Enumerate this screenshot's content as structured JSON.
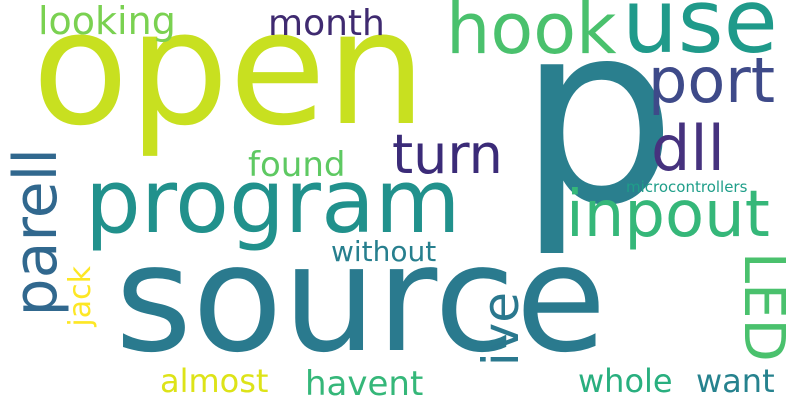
{
  "words": {
    "p": {
      "text": "p",
      "color": "#2a7f8e"
    },
    "source": {
      "text": "source",
      "color": "#2a7a8e"
    },
    "open": {
      "text": "open",
      "color": "#c8e020"
    },
    "program": {
      "text": "program",
      "color": "#21918c"
    },
    "use": {
      "text": "use",
      "color": "#1f9a8a"
    },
    "hook": {
      "text": "hook",
      "color": "#4ac16d"
    },
    "inpout": {
      "text": "inpout",
      "color": "#35b779"
    },
    "turn": {
      "text": "turn",
      "color": "#3b2b78"
    },
    "parell": {
      "text": "parell",
      "color": "#31688e"
    },
    "dll": {
      "text": "dll",
      "color": "#46327e"
    },
    "port": {
      "text": "port",
      "color": "#3e4a89"
    },
    "ive": {
      "text": "ive",
      "color": "#2a788e"
    },
    "led": {
      "text": "LED",
      "color": "#4ac16d"
    },
    "looking": {
      "text": "looking",
      "color": "#7ad151"
    },
    "month": {
      "text": "month",
      "color": "#3f2a70"
    },
    "found": {
      "text": "found",
      "color": "#5ec962"
    },
    "without": {
      "text": "without",
      "color": "#277f8e"
    },
    "jack": {
      "text": "jack",
      "color": "#fde725"
    },
    "almost": {
      "text": "almost",
      "color": "#dde318"
    },
    "havent": {
      "text": "havent",
      "color": "#35b779"
    },
    "whole": {
      "text": "whole",
      "color": "#29af7f"
    },
    "want": {
      "text": "want",
      "color": "#26828e"
    },
    "microcontrollers": {
      "text": "microcontrollers",
      "color": "#1f9e89"
    }
  }
}
